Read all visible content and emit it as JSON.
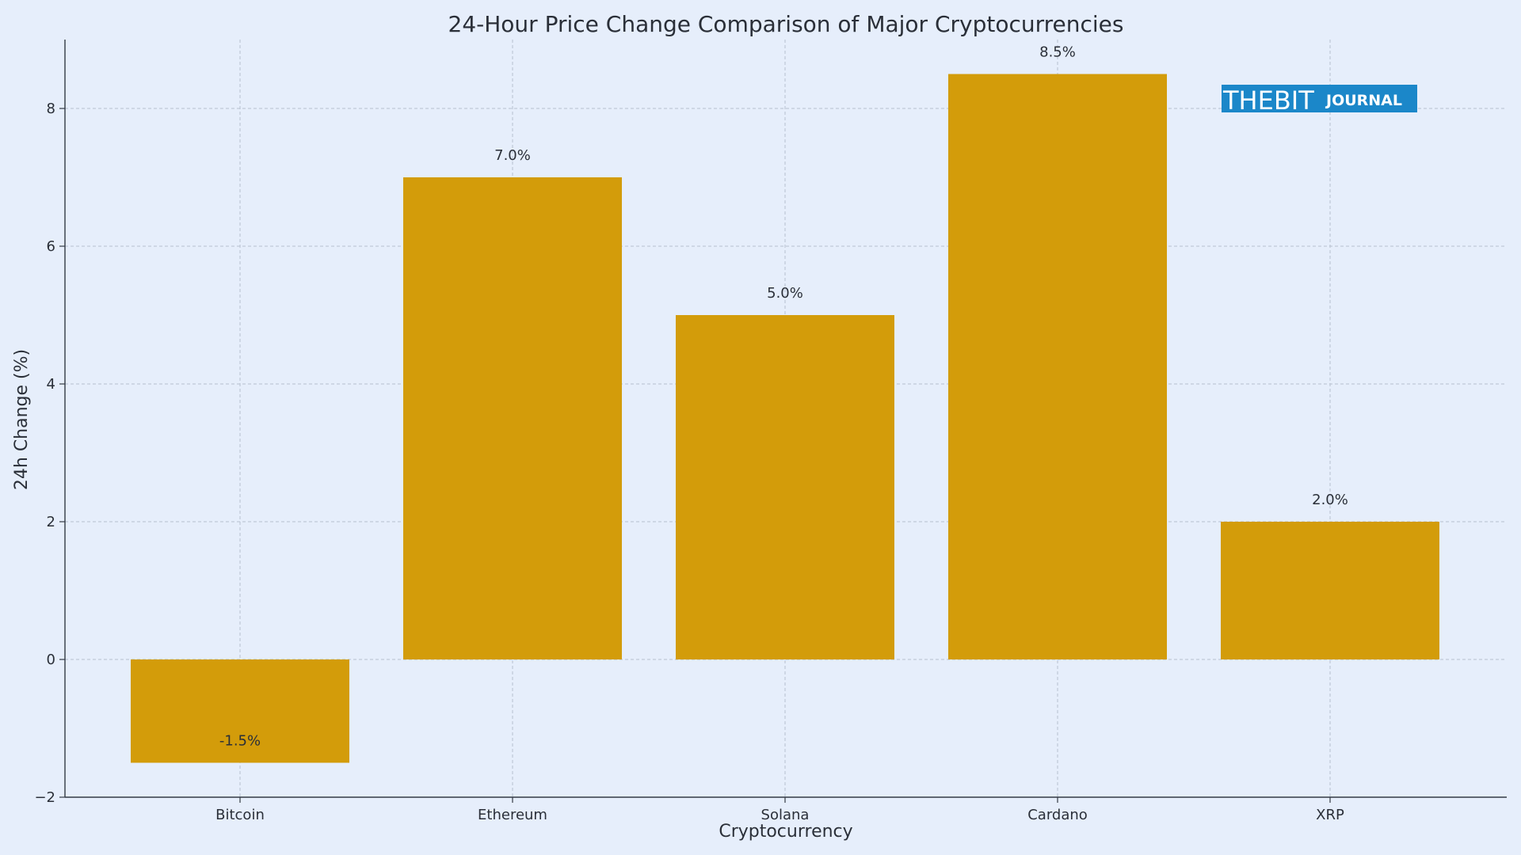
{
  "chart_data": {
    "type": "bar",
    "title": "24-Hour Price Change Comparison of Major Cryptocurrencies",
    "xlabel": "Cryptocurrency",
    "ylabel": "24h Change (%)",
    "categories": [
      "Bitcoin",
      "Ethereum",
      "Solana",
      "Cardano",
      "XRP"
    ],
    "values": [
      -1.5,
      7.0,
      5.0,
      8.5,
      2.0
    ],
    "data_labels": [
      "-1.5%",
      "7.0%",
      "5.0%",
      "8.5%",
      "2.0%"
    ],
    "ylim": [
      -2,
      9
    ],
    "yticks": [
      -2,
      0,
      2,
      4,
      6,
      8
    ],
    "ytick_labels": [
      "−2",
      "0",
      "2",
      "4",
      "6",
      "8"
    ],
    "grid": true,
    "bar_color": "#d39c0a",
    "background_color": "#e6eefb"
  },
  "watermark": {
    "brand": "THEBIT",
    "sub": "JOURNAL",
    "color": "#1b87c9"
  }
}
